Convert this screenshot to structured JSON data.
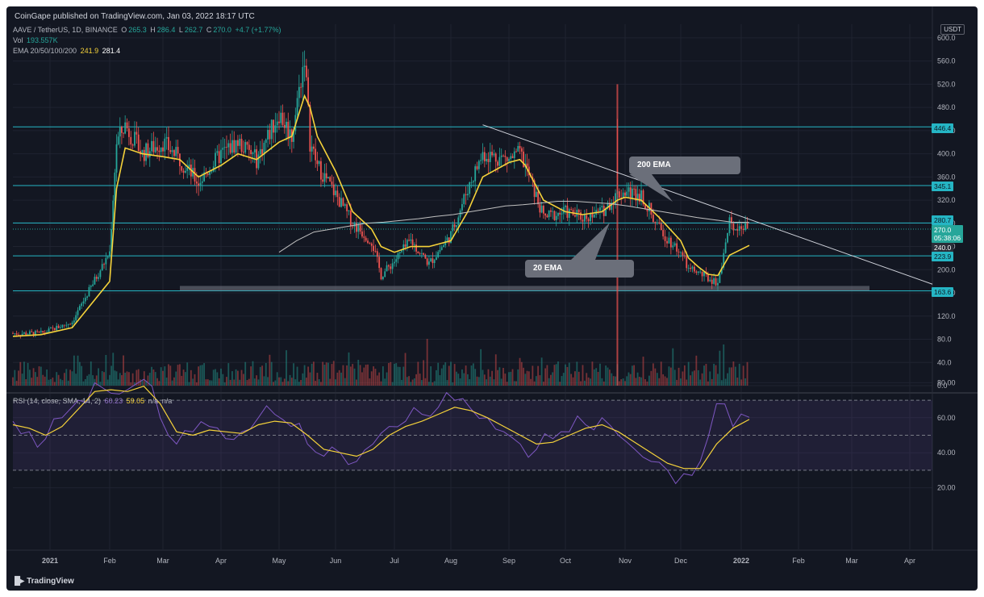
{
  "header": {
    "published": "CoinGape published on TradingView.com, Jan 03, 2022 18:17 UTC"
  },
  "legend": {
    "symbol": "AAVE / TetherUS, 1D, BINANCE",
    "o_label": "O",
    "o": "265.3",
    "h_label": "H",
    "h": "286.4",
    "l_label": "L",
    "l": "262.7",
    "c_label": "C",
    "c": "270.0",
    "change": "+4.7 (+1.77%)",
    "vol_label": "Vol",
    "vol": "193.557K",
    "ema_label": "EMA 20/50/100/200",
    "ema20": "241.9",
    "ema200": "281.4"
  },
  "rsi_legend": {
    "label": "RSI (14, close, SMA, 14, 2)",
    "rsi": "60.23",
    "sma": "59.05",
    "na1": "n/a",
    "na2": "n/a"
  },
  "currency_tag": "USDT",
  "price_tags": {
    "resistance_high": "446.4",
    "r345": "345.1",
    "r280": "280.7",
    "current": "270.0",
    "countdown": "05:38:06",
    "ema20_axis": "240.0",
    "s223": "223.9",
    "support": "163.6"
  },
  "callouts": {
    "ema200": "200 EMA",
    "ema20": "20 EMA"
  },
  "footer_brand": "TradingView",
  "colors": {
    "bg": "#131722",
    "up": "#26a69a",
    "down": "#ef5350",
    "level": "#25b5c4",
    "ema20": "#f5d23a",
    "ema200": "#c0c0c0",
    "rsi": "#7e57c2",
    "rsi_sma": "#f5d23a"
  },
  "chart_data": {
    "type": "candlestick",
    "symbol": "AAVE / TetherUS",
    "timeframe": "1D",
    "x_ticks": [
      "2021",
      "Feb",
      "Mar",
      "Apr",
      "May",
      "Jun",
      "Jul",
      "Aug",
      "Sep",
      "Oct",
      "Nov",
      "Dec",
      "2022",
      "Feb",
      "Mar",
      "Apr"
    ],
    "price_axis": {
      "ticks": [
        600.0,
        560.0,
        520.0,
        480.0,
        440.0,
        400.0,
        360.0,
        320.0,
        280.0,
        240.0,
        200.0,
        160.0,
        120.0,
        80.0,
        40.0,
        0.0
      ],
      "range": [
        0,
        620
      ]
    },
    "horizontal_levels": [
      446.4,
      345.1,
      280.7,
      223.9,
      163.6
    ],
    "support_zone": [
      163.6,
      172
    ],
    "price_series": {
      "dates": [
        "Jan 01",
        "Jan 10",
        "Jan 20",
        "Feb 01",
        "Feb 05",
        "Feb 10",
        "Feb 20",
        "Mar 01",
        "Mar 10",
        "Mar 20",
        "Apr 01",
        "Apr 10",
        "Apr 20",
        "May 01",
        "May 08",
        "May 15",
        "May 18",
        "May 22",
        "Jun 01",
        "Jun 10",
        "Jun 20",
        "Jun 25",
        "Jul 01",
        "Jul 10",
        "Jul 20",
        "Aug 01",
        "Aug 10",
        "Aug 18",
        "Sep 01",
        "Sep 07",
        "Sep 10",
        "Sep 20",
        "Oct 01",
        "Oct 10",
        "Oct 20",
        "Oct 28",
        "Nov 01",
        "Nov 10",
        "Nov 20",
        "Dec 01",
        "Dec 05",
        "Dec 10",
        "Dec 15",
        "Dec 20",
        "Dec 26",
        "Jan 03"
      ],
      "close": [
        90,
        90,
        110,
        230,
        420,
        450,
        400,
        420,
        390,
        350,
        400,
        420,
        390,
        470,
        430,
        570,
        420,
        380,
        330,
        280,
        250,
        190,
        215,
        250,
        210,
        260,
        340,
        400,
        390,
        400,
        380,
        290,
        300,
        290,
        300,
        330,
        335,
        330,
        270,
        230,
        200,
        195,
        185,
        178,
        280,
        270
      ]
    },
    "ema20_series": [
      85,
      88,
      100,
      180,
      340,
      410,
      400,
      395,
      390,
      360,
      380,
      400,
      390,
      420,
      430,
      500,
      480,
      430,
      370,
      300,
      270,
      240,
      230,
      240,
      240,
      250,
      300,
      360,
      385,
      390,
      380,
      320,
      300,
      295,
      300,
      320,
      325,
      320,
      290,
      250,
      220,
      205,
      192,
      190,
      225,
      241.9
    ],
    "ema200_series": {
      "start_date": "May 01",
      "values": [
        230,
        250,
        265,
        270,
        275,
        280,
        282,
        285,
        288,
        292,
        295,
        300,
        305,
        310,
        312,
        315,
        318,
        318,
        316,
        314,
        310,
        305,
        300,
        295,
        290,
        286,
        282,
        281.4
      ]
    },
    "trendline": [
      [
        "Aug 18",
        450
      ],
      [
        "Apr 05",
        175
      ]
    ],
    "volume": {
      "unit": "K",
      "spike_date": "Oct 28"
    },
    "rsi": {
      "axis_ticks": [
        80.0,
        60.0,
        40.0,
        20.0
      ],
      "bands": [
        70,
        50,
        30
      ],
      "values": [
        58,
        52,
        48,
        60,
        70,
        80,
        74,
        76,
        82,
        60,
        45,
        52,
        55,
        48,
        52,
        60,
        62,
        55,
        45,
        38,
        40,
        35,
        45,
        55,
        58,
        62,
        66,
        70,
        65,
        60,
        52,
        45,
        42,
        48,
        52,
        56,
        60,
        50,
        42,
        35,
        30,
        28,
        35,
        68,
        55,
        60.23
      ],
      "sma": [
        56,
        54,
        50,
        55,
        65,
        75,
        76,
        75,
        78,
        68,
        52,
        50,
        53,
        52,
        51,
        56,
        58,
        57,
        50,
        42,
        40,
        38,
        42,
        50,
        55,
        58,
        62,
        66,
        64,
        60,
        55,
        50,
        45,
        46,
        50,
        54,
        56,
        52,
        46,
        40,
        34,
        31,
        31,
        45,
        54,
        59.05
      ]
    }
  }
}
